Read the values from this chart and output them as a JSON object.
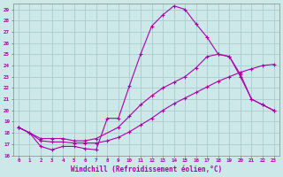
{
  "xlabel": "Windchill (Refroidissement éolien,°C)",
  "background_color": "#cce8e8",
  "line_color": "#aa00aa",
  "grid_color": "#aacccc",
  "xlim_min": -0.5,
  "xlim_max": 23.5,
  "ylim_min": 16,
  "ylim_max": 29.5,
  "yticks": [
    16,
    17,
    18,
    19,
    20,
    21,
    22,
    23,
    24,
    25,
    26,
    27,
    28,
    29
  ],
  "xticks": [
    0,
    1,
    2,
    3,
    4,
    5,
    6,
    7,
    8,
    9,
    10,
    11,
    12,
    13,
    14,
    15,
    16,
    17,
    18,
    19,
    20,
    21,
    22,
    23
  ],
  "line1_x": [
    0,
    1,
    2,
    3,
    4,
    5,
    6,
    7,
    8,
    9,
    10,
    11,
    12,
    13,
    14,
    15,
    16,
    17,
    18,
    19,
    20,
    21,
    22,
    23
  ],
  "line1_y": [
    18.5,
    18.0,
    16.8,
    16.5,
    16.8,
    16.8,
    16.6,
    16.5,
    19.3,
    19.3,
    22.2,
    25.0,
    27.5,
    28.5,
    29.3,
    29.0,
    27.7,
    26.5,
    25.0,
    24.8,
    23.0,
    21.0,
    20.5,
    20.0
  ],
  "line2_x": [
    0,
    2,
    3,
    4,
    5,
    6,
    7,
    9,
    10,
    11,
    12,
    13,
    14,
    15,
    16,
    17,
    18,
    19,
    20,
    21,
    22,
    23
  ],
  "line2_y": [
    18.5,
    17.5,
    17.5,
    17.5,
    17.3,
    17.3,
    17.5,
    18.5,
    19.5,
    20.5,
    21.3,
    22.0,
    22.5,
    23.0,
    23.8,
    24.8,
    25.0,
    24.8,
    23.2,
    21.0,
    20.5,
    20.0
  ],
  "line3_x": [
    0,
    1,
    2,
    3,
    4,
    5,
    6,
    7,
    8,
    9,
    10,
    11,
    12,
    13,
    14,
    15,
    16,
    17,
    18,
    19,
    20,
    21,
    22,
    23
  ],
  "line3_y": [
    18.5,
    18.0,
    17.3,
    17.2,
    17.2,
    17.1,
    17.1,
    17.1,
    17.3,
    17.6,
    18.1,
    18.7,
    19.3,
    20.0,
    20.6,
    21.1,
    21.6,
    22.1,
    22.6,
    23.0,
    23.4,
    23.7,
    24.0,
    24.1
  ]
}
